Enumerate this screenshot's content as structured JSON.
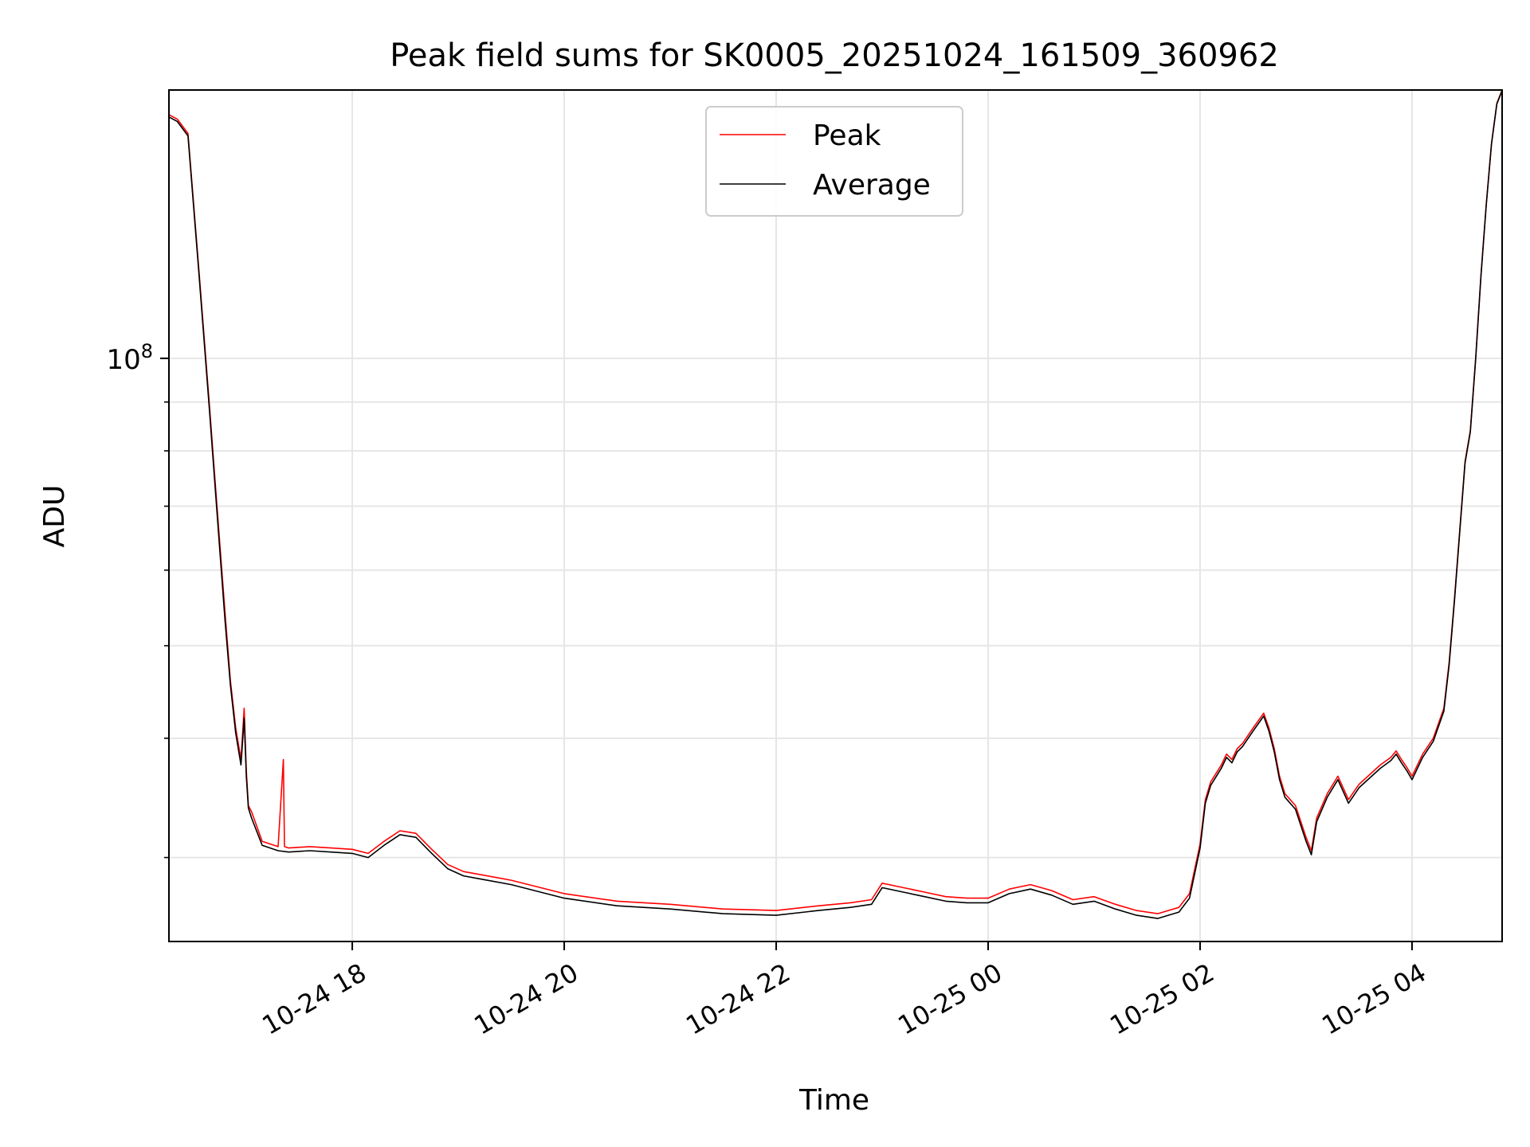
{
  "chart_data": {
    "type": "line",
    "title": "Peak field sums for SK0005_20251024_161509_360962",
    "xlabel": "Time",
    "ylabel": "ADU",
    "yscale": "log",
    "ylim": [
      24500000,
      191000000
    ],
    "xlim_hours": [
      16.27,
      28.85
    ],
    "grid": true,
    "legend_position": "upper center",
    "y_major_tick": {
      "base": "10",
      "exp": "8",
      "value": 100000000
    },
    "y_minor_ticks": [
      30000000,
      40000000,
      50000000,
      60000000,
      70000000,
      80000000,
      90000000,
      200000000
    ],
    "x_ticks": [
      {
        "t": 18,
        "label": "10-24 18"
      },
      {
        "t": 20,
        "label": "10-24 20"
      },
      {
        "t": 22,
        "label": "10-24 22"
      },
      {
        "t": 24,
        "label": "10-25 00"
      },
      {
        "t": 26,
        "label": "10-25 02"
      },
      {
        "t": 28,
        "label": "10-25 04"
      }
    ],
    "series": [
      {
        "name": "Peak",
        "color": "#ff0000",
        "t": [
          16.27,
          16.35,
          16.45,
          16.55,
          16.65,
          16.75,
          16.8,
          16.85,
          16.9,
          16.95,
          16.98,
          17.0,
          17.02,
          17.05,
          17.15,
          17.3,
          17.35,
          17.36,
          17.4,
          17.6,
          17.8,
          18.0,
          18.15,
          18.3,
          18.45,
          18.6,
          18.75,
          18.9,
          19.05,
          19.2,
          19.5,
          20.0,
          20.5,
          21.0,
          21.5,
          22.0,
          22.4,
          22.7,
          22.9,
          23.0,
          23.2,
          23.4,
          23.6,
          23.8,
          24.0,
          24.2,
          24.4,
          24.6,
          24.8,
          25.0,
          25.2,
          25.4,
          25.6,
          25.8,
          25.9,
          26.0,
          26.05,
          26.1,
          26.2,
          26.25,
          26.3,
          26.35,
          26.4,
          26.5,
          26.6,
          26.65,
          26.7,
          26.75,
          26.8,
          26.9,
          27.0,
          27.05,
          27.1,
          27.2,
          27.3,
          27.35,
          27.4,
          27.5,
          27.7,
          27.8,
          27.85,
          27.9,
          27.95,
          28.0,
          28.1,
          28.2,
          28.3,
          28.35,
          28.4,
          28.45,
          28.5,
          28.55,
          28.6,
          28.65,
          28.7,
          28.75,
          28.8,
          28.85
        ],
        "values": [
          180000000,
          178000000,
          172000000,
          125000000,
          90000000,
          64000000,
          54000000,
          46000000,
          41000000,
          38000000,
          43000000,
          37000000,
          34000000,
          33500000,
          31200000,
          30800000,
          38000000,
          30800000,
          30700000,
          30800000,
          30700000,
          30600000,
          30300000,
          31200000,
          32000000,
          31800000,
          30600000,
          29500000,
          29000000,
          28800000,
          28400000,
          27500000,
          27000000,
          26800000,
          26500000,
          26400000,
          26700000,
          26900000,
          27100000,
          28200000,
          27900000,
          27600000,
          27300000,
          27200000,
          27200000,
          27800000,
          28100000,
          27700000,
          27100000,
          27300000,
          26800000,
          26400000,
          26200000,
          26600000,
          27500000,
          31000000,
          34500000,
          36000000,
          37500000,
          38500000,
          38000000,
          39000000,
          39500000,
          41000000,
          42500000,
          41000000,
          39000000,
          36500000,
          35000000,
          34000000,
          31500000,
          30500000,
          33000000,
          35000000,
          36500000,
          35500000,
          34500000,
          35800000,
          37500000,
          38200000,
          38800000,
          38000000,
          37300000,
          36500000,
          38500000,
          40000000,
          43000000,
          48000000,
          56000000,
          66000000,
          78000000,
          84000000,
          100000000,
          122000000,
          145000000,
          168000000,
          185000000,
          191000000
        ]
      },
      {
        "name": "Average",
        "color": "#000000",
        "t": [
          16.27,
          16.35,
          16.45,
          16.55,
          16.65,
          16.75,
          16.8,
          16.85,
          16.9,
          16.95,
          16.98,
          17.0,
          17.02,
          17.05,
          17.15,
          17.3,
          17.4,
          17.6,
          17.8,
          18.0,
          18.15,
          18.3,
          18.45,
          18.6,
          18.75,
          18.9,
          19.05,
          19.2,
          19.5,
          20.0,
          20.5,
          21.0,
          21.5,
          22.0,
          22.4,
          22.7,
          22.9,
          23.0,
          23.2,
          23.4,
          23.6,
          23.8,
          24.0,
          24.2,
          24.4,
          24.6,
          24.8,
          25.0,
          25.2,
          25.4,
          25.6,
          25.8,
          25.9,
          26.0,
          26.05,
          26.1,
          26.2,
          26.25,
          26.3,
          26.35,
          26.4,
          26.5,
          26.6,
          26.65,
          26.7,
          26.75,
          26.8,
          26.9,
          27.0,
          27.05,
          27.1,
          27.2,
          27.3,
          27.35,
          27.4,
          27.5,
          27.7,
          27.8,
          27.85,
          27.9,
          27.95,
          28.0,
          28.1,
          28.2,
          28.3,
          28.35,
          28.4,
          28.45,
          28.5,
          28.55,
          28.6,
          28.65,
          28.7,
          28.75,
          28.8,
          28.85
        ],
        "values": [
          179000000,
          177000000,
          171000000,
          124000000,
          89000000,
          63000000,
          53000000,
          45500000,
          40500000,
          37500000,
          42000000,
          36500000,
          33800000,
          33000000,
          30900000,
          30500000,
          30400000,
          30500000,
          30400000,
          30300000,
          30000000,
          30900000,
          31700000,
          31500000,
          30300000,
          29200000,
          28700000,
          28500000,
          28100000,
          27200000,
          26700000,
          26500000,
          26200000,
          26100000,
          26400000,
          26600000,
          26800000,
          27900000,
          27600000,
          27300000,
          27000000,
          26900000,
          26900000,
          27500000,
          27800000,
          27400000,
          26800000,
          27000000,
          26500000,
          26100000,
          25900000,
          26300000,
          27200000,
          30700000,
          34200000,
          35700000,
          37200000,
          38200000,
          37700000,
          38700000,
          39200000,
          40700000,
          42200000,
          40700000,
          38700000,
          36200000,
          34700000,
          33700000,
          31200000,
          30200000,
          32700000,
          34700000,
          36200000,
          35200000,
          34200000,
          35500000,
          37200000,
          37900000,
          38500000,
          37700000,
          37000000,
          36200000,
          38200000,
          39700000,
          42700000,
          47700000,
          55700000,
          65700000,
          77700000,
          83700000,
          99700000,
          121700000,
          144700000,
          167700000,
          184700000,
          190700000
        ]
      }
    ]
  }
}
